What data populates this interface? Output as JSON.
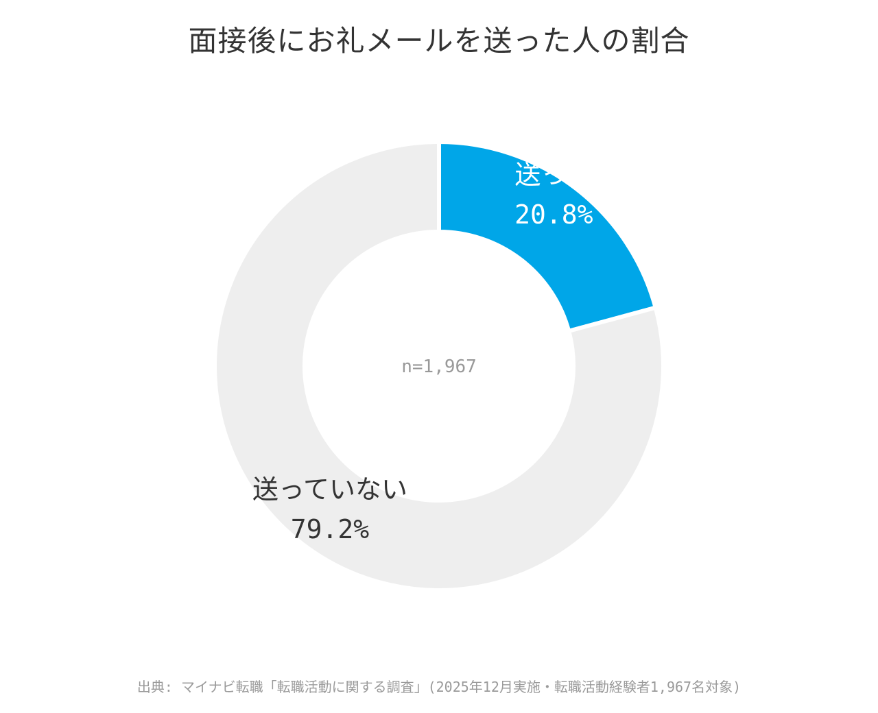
{
  "chart_data": {
    "type": "pie",
    "title": "面接後にお礼メールを送った人の割合",
    "center_label": "n=1,967",
    "slices": [
      {
        "label": "送った",
        "value": 20.8,
        "value_label": "20.8%",
        "color": "#00a6e8",
        "text_color": "#ffffff"
      },
      {
        "label": "送っていない",
        "value": 79.2,
        "value_label": "79.2%",
        "color": "#eeeeee",
        "text_color": "#333333"
      }
    ]
  },
  "footer": {
    "source": "出典: マイナビ転職「転職活動に関する調査」(2025年12月実施・転職活動経験者1,967名対象)"
  }
}
